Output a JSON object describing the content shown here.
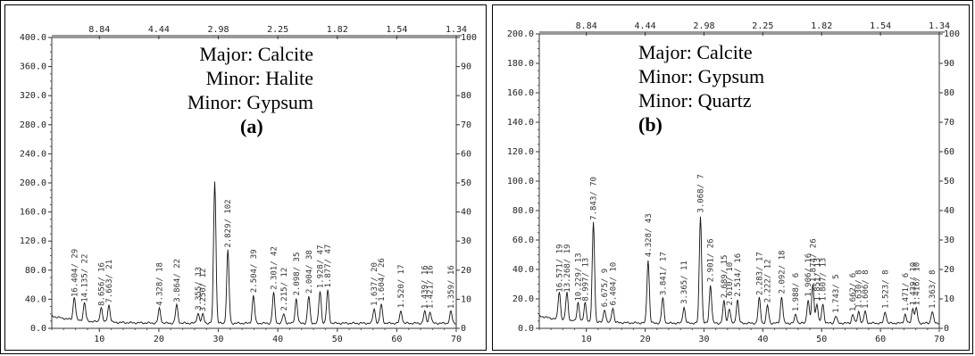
{
  "chart_data": [
    {
      "id": "a",
      "type": "line",
      "xlim": [
        2,
        70
      ],
      "ylim": [
        0,
        400
      ],
      "x_ticks": [
        10,
        20,
        30,
        40,
        50,
        60,
        70
      ],
      "y_ticks": [
        "0.0",
        "40.0",
        "80.0",
        "120.0",
        "160.0",
        "200.0",
        "240.0",
        "280.0",
        "320.0",
        "360.0",
        "400.0"
      ],
      "right_ticks": [
        "0",
        "10",
        "20",
        "30",
        "40",
        "50",
        "60",
        "70",
        "80",
        "90",
        "100"
      ],
      "top_ticks": [
        {
          "label": "8.84",
          "x": 10
        },
        {
          "label": "4.44",
          "x": 20
        },
        {
          "label": "2.98",
          "x": 30
        },
        {
          "label": "2.25",
          "x": 40
        },
        {
          "label": "1.82",
          "x": 50
        },
        {
          "label": "1.54",
          "x": 60
        },
        {
          "label": "1.34",
          "x": 70
        }
      ],
      "annotation": [
        "Major: Calcite",
        "Minor: Halite",
        "Minor: Gypsum"
      ],
      "panel_label": "(a)",
      "peaks": [
        {
          "x": 5.8,
          "y": 32,
          "label": "16.404/ 29"
        },
        {
          "x": 7.5,
          "y": 25,
          "label": "14.135/ 22"
        },
        {
          "x": 10.3,
          "y": 20,
          "label": "8.656/ 16"
        },
        {
          "x": 11.6,
          "y": 24,
          "label": "7.663/ 21"
        },
        {
          "x": 20.1,
          "y": 20,
          "label": "4.328/ 18"
        },
        {
          "x": 23.0,
          "y": 25,
          "label": "3.864/ 22"
        },
        {
          "x": 26.6,
          "y": 14,
          "label": "3.355/ 13"
        },
        {
          "x": 27.4,
          "y": 12,
          "label": "3.250/ 12"
        },
        {
          "x": 29.4,
          "y": 196,
          "label": "3.053/ 205"
        },
        {
          "x": 31.6,
          "y": 100,
          "label": "2.829/ 102"
        },
        {
          "x": 35.9,
          "y": 38,
          "label": "2.504/ 39"
        },
        {
          "x": 39.3,
          "y": 42,
          "label": "2.301/ 42"
        },
        {
          "x": 41.0,
          "y": 13,
          "label": "2.215/ 12"
        },
        {
          "x": 43.1,
          "y": 34,
          "label": "2.098/ 35"
        },
        {
          "x": 45.2,
          "y": 37,
          "label": "2.004/ 38"
        },
        {
          "x": 47.1,
          "y": 44,
          "label": "1.928/ 47"
        },
        {
          "x": 48.4,
          "y": 45,
          "label": "1.877/ 47"
        },
        {
          "x": 56.2,
          "y": 20,
          "label": "1.637/ 20"
        },
        {
          "x": 57.4,
          "y": 26,
          "label": "1.604/ 26"
        },
        {
          "x": 60.7,
          "y": 17,
          "label": "1.520/ 17"
        },
        {
          "x": 64.7,
          "y": 16,
          "label": "1.439/ 16"
        },
        {
          "x": 65.6,
          "y": 16,
          "label": "1.421/ 16"
        },
        {
          "x": 69.1,
          "y": 16,
          "label": "1.359/ 16"
        }
      ]
    },
    {
      "id": "b",
      "type": "line",
      "xlim": [
        2,
        70
      ],
      "ylim": [
        0,
        200
      ],
      "x_ticks": [
        10,
        20,
        30,
        40,
        50,
        60,
        70
      ],
      "y_ticks": [
        "0.0",
        "20.0",
        "40.0",
        "60.0",
        "80.0",
        "100.0",
        "120.0",
        "140.0",
        "160.0",
        "180.0",
        "200.0"
      ],
      "right_ticks": [
        "0",
        "10",
        "20",
        "30",
        "40",
        "50",
        "60",
        "70",
        "80",
        "90",
        "100"
      ],
      "top_ticks": [
        {
          "label": "8.84",
          "x": 10
        },
        {
          "label": "4.44",
          "x": 20
        },
        {
          "label": "2.98",
          "x": 30
        },
        {
          "label": "2.25",
          "x": 40
        },
        {
          "label": "1.82",
          "x": 50
        },
        {
          "label": "1.54",
          "x": 60
        },
        {
          "label": "1.34",
          "x": 70
        }
      ],
      "annotation": [
        "Major: Calcite",
        "Minor: Gypsum",
        "Minor: Quartz"
      ],
      "panel_label": "(b)",
      "peaks": [
        {
          "x": 5.4,
          "y": 19,
          "label": "16.571/ 19"
        },
        {
          "x": 6.7,
          "y": 19,
          "label": "13.268/ 19"
        },
        {
          "x": 8.6,
          "y": 13,
          "label": "10.229/ 13"
        },
        {
          "x": 9.8,
          "y": 13,
          "label": "8.997/ 13"
        },
        {
          "x": 11.2,
          "y": 68,
          "label": "7.843/ 70"
        },
        {
          "x": 13.1,
          "y": 9,
          "label": "6.675/ 9"
        },
        {
          "x": 14.5,
          "y": 10,
          "label": "6.404/ 10"
        },
        {
          "x": 20.5,
          "y": 43,
          "label": "4.328/ 43"
        },
        {
          "x": 23.0,
          "y": 17,
          "label": "3.841/ 17"
        },
        {
          "x": 26.6,
          "y": 11,
          "label": "3.365/ 11"
        },
        {
          "x": 29.4,
          "y": 73,
          "label": "3.068/ 73"
        },
        {
          "x": 31.1,
          "y": 26,
          "label": "2.901/ 26"
        },
        {
          "x": 33.4,
          "y": 15,
          "label": "2.689/ 15"
        },
        {
          "x": 34.3,
          "y": 10,
          "label": "2.610/ 10"
        },
        {
          "x": 35.7,
          "y": 16,
          "label": "2.514/ 16"
        },
        {
          "x": 39.4,
          "y": 17,
          "label": "2.283/ 17"
        },
        {
          "x": 40.8,
          "y": 12,
          "label": "2.222/ 12"
        },
        {
          "x": 43.2,
          "y": 18,
          "label": "2.092/ 18"
        },
        {
          "x": 45.6,
          "y": 6,
          "label": "1.988/ 6"
        },
        {
          "x": 47.7,
          "y": 16,
          "label": "1.906/ 16"
        },
        {
          "x": 48.5,
          "y": 26,
          "label": "1.874/ 26"
        },
        {
          "x": 49.2,
          "y": 13,
          "label": "1.851/ 13"
        },
        {
          "x": 50.2,
          "y": 13,
          "label": "1.807/ 13"
        },
        {
          "x": 52.4,
          "y": 5,
          "label": "1.743/ 5"
        },
        {
          "x": 55.3,
          "y": 6,
          "label": "1.662/ 6"
        },
        {
          "x": 56.3,
          "y": 8,
          "label": "1.630/ 8"
        },
        {
          "x": 57.4,
          "y": 8,
          "label": "1.606/ 8"
        },
        {
          "x": 60.8,
          "y": 8,
          "label": "1.523/ 8"
        },
        {
          "x": 64.2,
          "y": 6,
          "label": "1.471/ 6"
        },
        {
          "x": 65.5,
          "y": 10,
          "label": "1.439/ 10"
        },
        {
          "x": 66.1,
          "y": 10,
          "label": "1.416/ 10"
        },
        {
          "x": 68.8,
          "y": 8,
          "label": "1.363/ 8"
        }
      ]
    }
  ]
}
